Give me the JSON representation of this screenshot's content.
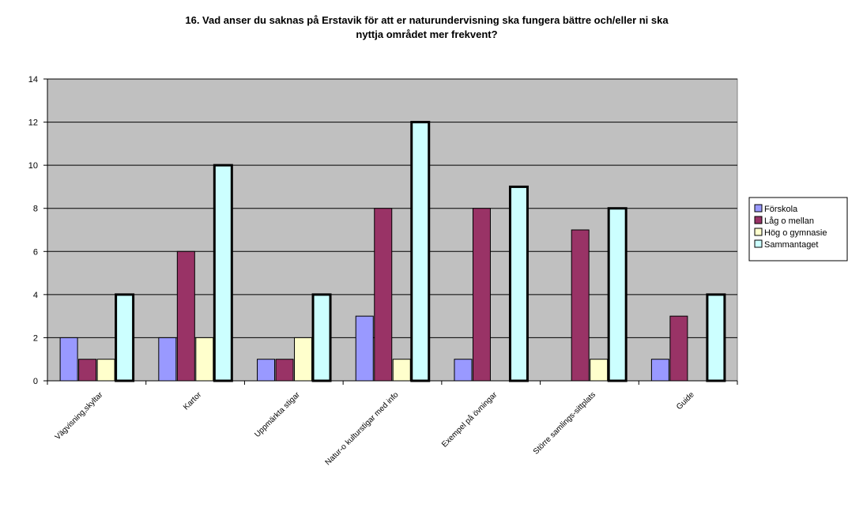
{
  "chart_data": {
    "type": "bar",
    "title_lines": [
      "16. Vad anser du saknas på Erstavik för att er naturundervisning ska fungera bättre och/eller ni ska",
      "nyttja området mer frekvent?"
    ],
    "categories": [
      "Vägvisning,skyltar",
      "Kartor",
      "Uppmärkta stigar",
      "Natur-o kulturstigar med info",
      "Exempel på övningar",
      "Större samlings-sittplats",
      "Guide"
    ],
    "series": [
      {
        "name": "Förskola",
        "color": "#9999ff",
        "values": [
          2,
          2,
          1,
          3,
          1,
          0,
          1
        ]
      },
      {
        "name": "Låg o mellan",
        "color": "#993366",
        "values": [
          1,
          6,
          1,
          8,
          8,
          7,
          3
        ]
      },
      {
        "name": "Hög o gymnasie",
        "color": "#ffffcc",
        "values": [
          1,
          2,
          2,
          1,
          0,
          1,
          0
        ]
      },
      {
        "name": "Sammantaget",
        "color": "#ccffff",
        "values": [
          4,
          10,
          4,
          12,
          9,
          8,
          4
        ]
      }
    ],
    "ylim": [
      0,
      14
    ],
    "yticks": [
      0,
      2,
      4,
      6,
      8,
      10,
      12,
      14
    ],
    "grid": true,
    "legend_position": "right",
    "plot_background": "#c0c0c0"
  }
}
